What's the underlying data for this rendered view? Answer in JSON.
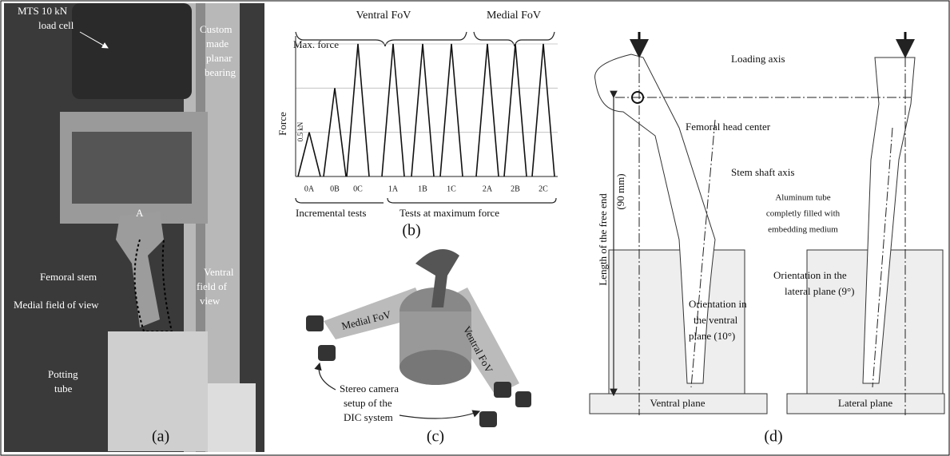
{
  "panel_a": {
    "load_cell": [
      "MTS 10 kN",
      "load cell"
    ],
    "bearing": [
      "Custom",
      "made",
      "planar",
      "bearing"
    ],
    "point": "A",
    "stem": "Femoral stem",
    "medial": "Medial field of view",
    "ventral": [
      "Ventral",
      "field of",
      "view"
    ],
    "potting": [
      "Potting",
      "tube"
    ],
    "caption": "(a)"
  },
  "panel_b": {
    "ventral_fov": "Ventral FoV",
    "medial_fov": "Medial FoV",
    "max_force": "Max. force",
    "axis_label": "Force",
    "step": "0.5 kN",
    "tests": [
      {
        "label": "0A",
        "peak": 0.5
      },
      {
        "label": "0B",
        "peak": 1.0
      },
      {
        "label": "0C",
        "peak": 1.5
      },
      {
        "label": "1A",
        "peak": 1.5
      },
      {
        "label": "1B",
        "peak": 1.5
      },
      {
        "label": "1C",
        "peak": 1.5
      },
      {
        "label": "2A",
        "peak": 1.5
      },
      {
        "label": "2B",
        "peak": 1.5
      },
      {
        "label": "2C",
        "peak": 1.5
      }
    ],
    "incremental": "Incremental tests",
    "maximum": "Tests at maximum force",
    "caption": "(b)"
  },
  "panel_c": {
    "medial_fov": "Medial FoV",
    "ventral_fov": "Ventral FoV",
    "camera": [
      "Stereo camera",
      "setup of the",
      "DIC system"
    ],
    "caption": "(c)"
  },
  "panel_d": {
    "loading_axis": "Loading axis",
    "head_center": "Femoral head center",
    "shaft_axis": "Stem shaft axis",
    "tube": [
      "Aluminum tube",
      "completly filled with",
      "embedding medium"
    ],
    "free_end": [
      "Length of the free end",
      "(90 mm)"
    ],
    "ventral_orientation": [
      "Orientation in",
      "the ventral",
      "plane (10°)"
    ],
    "lateral_orientation": [
      "Orientation in the",
      "lateral plane (9°)"
    ],
    "ventral_plane": "Ventral plane",
    "lateral_plane": "Lateral plane",
    "caption": "(d)"
  }
}
